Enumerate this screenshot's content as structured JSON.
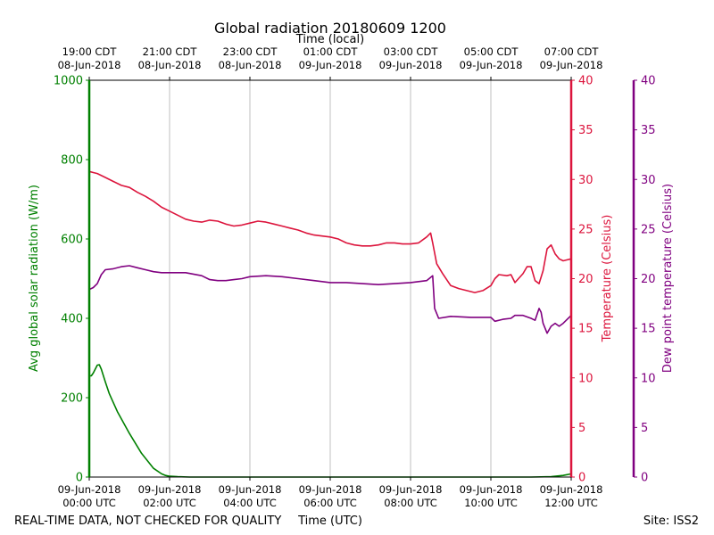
{
  "chart_data": {
    "type": "line",
    "title": "Global radiation 20180609 1200",
    "top_axis_label": "Time (local)",
    "xlabel": "Time (UTC)",
    "footer_left": "REAL-TIME DATA, NOT CHECKED FOR QUALITY",
    "footer_right": "Site: ISS2",
    "x_unit": "hours since 09-Jun-2018 00:00 UTC",
    "xlim": [
      0,
      12
    ],
    "x_ticks_bottom": [
      {
        "x": 0,
        "line1": "09-Jun-2018",
        "line2": "00:00 UTC"
      },
      {
        "x": 2,
        "line1": "09-Jun-2018",
        "line2": "02:00 UTC"
      },
      {
        "x": 4,
        "line1": "09-Jun-2018",
        "line2": "04:00 UTC"
      },
      {
        "x": 6,
        "line1": "09-Jun-2018",
        "line2": "06:00 UTC"
      },
      {
        "x": 8,
        "line1": "09-Jun-2018",
        "line2": "08:00 UTC"
      },
      {
        "x": 10,
        "line1": "09-Jun-2018",
        "line2": "10:00 UTC"
      },
      {
        "x": 12,
        "line1": "09-Jun-2018",
        "line2": "12:00 UTC"
      }
    ],
    "x_ticks_top": [
      {
        "x": 0,
        "line1": "19:00 CDT",
        "line2": "08-Jun-2018"
      },
      {
        "x": 2,
        "line1": "21:00 CDT",
        "line2": "08-Jun-2018"
      },
      {
        "x": 4,
        "line1": "23:00 CDT",
        "line2": "08-Jun-2018"
      },
      {
        "x": 6,
        "line1": "01:00 CDT",
        "line2": "09-Jun-2018"
      },
      {
        "x": 8,
        "line1": "03:00 CDT",
        "line2": "09-Jun-2018"
      },
      {
        "x": 10,
        "line1": "05:00 CDT",
        "line2": "09-Jun-2018"
      },
      {
        "x": 12,
        "line1": "07:00 CDT",
        "line2": "09-Jun-2018"
      }
    ],
    "grid": "vertical",
    "axes": [
      {
        "id": "radiation",
        "label": "Avg global solar radiation (W/m)",
        "side": "left",
        "color": "#008000",
        "ylim": [
          0,
          1000
        ],
        "ticks": [
          0,
          200,
          400,
          600,
          800,
          1000
        ]
      },
      {
        "id": "temperature",
        "label": "Temperature (Celsius)",
        "side": "right",
        "color": "#dc143c",
        "ylim": [
          0,
          40
        ],
        "ticks": [
          0,
          5,
          10,
          15,
          20,
          25,
          30,
          35,
          40
        ]
      },
      {
        "id": "dewpoint",
        "label": "Dew point temperature (Celsius)",
        "side": "far-right",
        "color": "#800080",
        "ylim": [
          0,
          40
        ],
        "ticks": [
          0,
          5,
          10,
          15,
          20,
          25,
          30,
          35,
          40
        ]
      }
    ],
    "series": [
      {
        "name": "Avg global solar radiation",
        "axis": "radiation",
        "color": "#008000",
        "x": [
          0,
          0.05,
          0.1,
          0.2,
          0.25,
          0.3,
          0.4,
          0.5,
          0.7,
          1.0,
          1.3,
          1.6,
          1.8,
          1.9,
          2.0,
          2.2,
          2.5,
          3,
          4,
          5,
          6,
          7,
          8,
          9,
          10,
          11,
          11.5,
          11.8,
          12
        ],
        "values": [
          255,
          255,
          262,
          282,
          283,
          272,
          240,
          210,
          165,
          110,
          60,
          22,
          8,
          4,
          2,
          1,
          0,
          0,
          0,
          0,
          0,
          0,
          0,
          0,
          0,
          0,
          1,
          4,
          8
        ]
      },
      {
        "name": "Temperature",
        "axis": "temperature",
        "color": "#dc143c",
        "x": [
          0,
          0.1,
          0.2,
          0.4,
          0.6,
          0.8,
          1.0,
          1.2,
          1.4,
          1.6,
          1.8,
          2.0,
          2.2,
          2.4,
          2.6,
          2.8,
          3.0,
          3.2,
          3.4,
          3.6,
          3.8,
          4.0,
          4.2,
          4.4,
          4.6,
          4.8,
          5.0,
          5.2,
          5.4,
          5.6,
          5.8,
          6.0,
          6.2,
          6.4,
          6.6,
          6.8,
          7.0,
          7.2,
          7.4,
          7.6,
          7.8,
          8.0,
          8.2,
          8.4,
          8.5,
          8.55,
          8.65,
          8.8,
          9.0,
          9.2,
          9.4,
          9.6,
          9.8,
          10.0,
          10.1,
          10.2,
          10.4,
          10.5,
          10.6,
          10.8,
          10.9,
          11.0,
          11.1,
          11.2,
          11.3,
          11.4,
          11.5,
          11.6,
          11.7,
          11.8,
          11.9,
          12.0
        ],
        "values": [
          30.8,
          30.7,
          30.6,
          30.2,
          29.8,
          29.4,
          29.2,
          28.7,
          28.3,
          27.8,
          27.2,
          26.8,
          26.4,
          26.0,
          25.8,
          25.7,
          25.9,
          25.8,
          25.5,
          25.3,
          25.4,
          25.6,
          25.8,
          25.7,
          25.5,
          25.3,
          25.1,
          24.9,
          24.6,
          24.4,
          24.3,
          24.2,
          24.0,
          23.6,
          23.4,
          23.3,
          23.3,
          23.4,
          23.6,
          23.6,
          23.5,
          23.5,
          23.6,
          24.2,
          24.6,
          23.6,
          21.5,
          20.5,
          19.3,
          19.0,
          18.8,
          18.6,
          18.8,
          19.3,
          20.0,
          20.4,
          20.3,
          20.4,
          19.6,
          20.5,
          21.2,
          21.2,
          19.8,
          19.5,
          20.8,
          23.0,
          23.4,
          22.5,
          22.0,
          21.8,
          21.9,
          22.0
        ]
      },
      {
        "name": "Dew point temperature",
        "axis": "dewpoint",
        "color": "#800080",
        "x": [
          0,
          0.1,
          0.2,
          0.3,
          0.4,
          0.6,
          0.8,
          1.0,
          1.2,
          1.4,
          1.6,
          1.8,
          2.0,
          2.4,
          2.8,
          3.0,
          3.2,
          3.4,
          3.6,
          3.8,
          4.0,
          4.4,
          4.8,
          5.2,
          5.6,
          6.0,
          6.4,
          6.8,
          7.2,
          7.6,
          8.0,
          8.2,
          8.4,
          8.55,
          8.6,
          8.7,
          9.0,
          9.5,
          10.0,
          10.1,
          10.3,
          10.5,
          10.6,
          10.8,
          11.0,
          11.1,
          11.2,
          11.25,
          11.3,
          11.4,
          11.5,
          11.6,
          11.7,
          11.8,
          12.0
        ],
        "values": [
          18.9,
          19.1,
          19.5,
          20.4,
          20.9,
          21.0,
          21.2,
          21.3,
          21.1,
          20.9,
          20.7,
          20.6,
          20.6,
          20.6,
          20.3,
          19.9,
          19.8,
          19.8,
          19.9,
          20.0,
          20.2,
          20.3,
          20.2,
          20.0,
          19.8,
          19.6,
          19.6,
          19.5,
          19.4,
          19.5,
          19.6,
          19.7,
          19.8,
          20.3,
          17.0,
          16.0,
          16.2,
          16.1,
          16.1,
          15.7,
          15.9,
          16.0,
          16.3,
          16.3,
          16.0,
          15.8,
          17.0,
          16.6,
          15.5,
          14.5,
          15.2,
          15.5,
          15.2,
          15.5,
          16.3
        ]
      }
    ]
  }
}
